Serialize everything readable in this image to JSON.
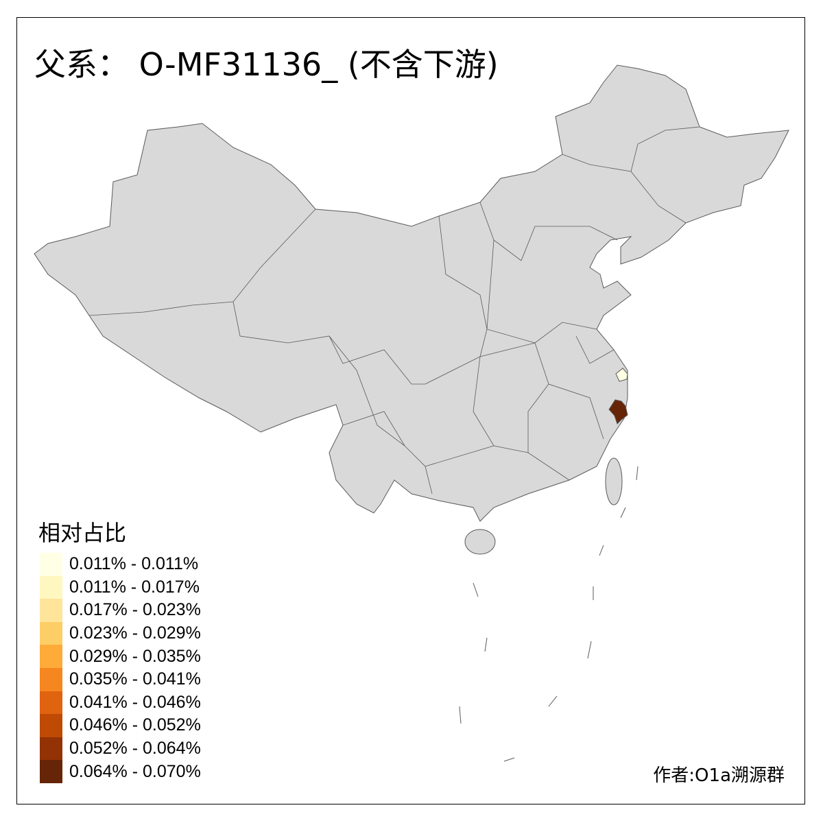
{
  "title": "父系： O-MF31136_ (不含下游)",
  "legend": {
    "title": "相对占比",
    "items": [
      {
        "label": "0.011% - 0.011%",
        "color": "#FFFFE5"
      },
      {
        "label": "0.011% - 0.017%",
        "color": "#FFF7C0"
      },
      {
        "label": "0.017% - 0.023%",
        "color": "#FEE59A"
      },
      {
        "label": "0.023% - 0.029%",
        "color": "#FECE66"
      },
      {
        "label": "0.029% - 0.035%",
        "color": "#FEAB3A"
      },
      {
        "label": "0.035% - 0.041%",
        "color": "#F6861F"
      },
      {
        "label": "0.041% - 0.046%",
        "color": "#E0630F"
      },
      {
        "label": "0.046% - 0.052%",
        "color": "#BF4A04"
      },
      {
        "label": "0.052% - 0.064%",
        "color": "#933204"
      },
      {
        "label": "0.064% - 0.070%",
        "color": "#662506"
      }
    ]
  },
  "map": {
    "base_fill": "#D9D9D9",
    "border_color": "#595959",
    "highlighted_regions": [
      {
        "area": "Shanghai area",
        "class": "0.011% - 0.011%",
        "color": "#FFFFE5"
      },
      {
        "area": "Wenzhou area",
        "class": "0.064% - 0.070%",
        "color": "#662506"
      }
    ]
  },
  "credit": "作者:O1a溯源群"
}
